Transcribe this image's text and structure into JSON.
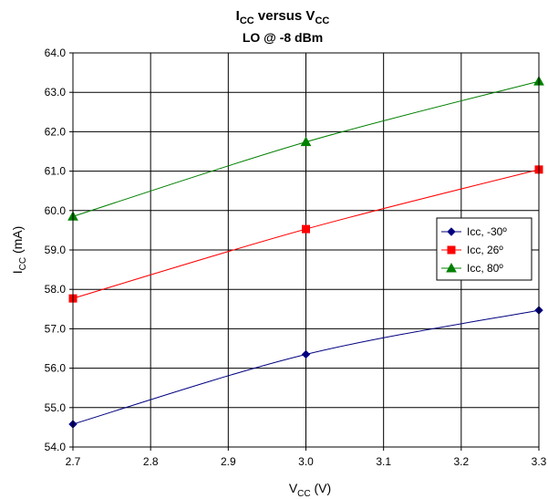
{
  "chart_data": {
    "type": "line",
    "title": {
      "main": "I",
      "main_sub": "CC",
      "mid": " versus V",
      "mid_sub": "CC"
    },
    "subtitle": "LO @ -8 dBm",
    "xlabel": {
      "main": "V",
      "sub": "CC",
      "unit": " (V)"
    },
    "ylabel": {
      "main": "I",
      "sub": "CC",
      "unit": " (mA)"
    },
    "xlim": [
      2.7,
      3.3
    ],
    "ylim": [
      54.0,
      64.0
    ],
    "x_ticks": [
      "2.7",
      "2.8",
      "2.9",
      "3.0",
      "3.1",
      "3.2",
      "3.3"
    ],
    "y_ticks": [
      "54.0",
      "55.0",
      "56.0",
      "57.0",
      "58.0",
      "59.0",
      "60.0",
      "61.0",
      "62.0",
      "63.0",
      "64.0"
    ],
    "grid": true,
    "legend_position": "right",
    "series": [
      {
        "name": "Icc, -30º",
        "color": "#000080",
        "marker": "diamond",
        "x": [
          2.7,
          3.0,
          3.3
        ],
        "values": [
          54.58,
          56.35,
          57.47
        ]
      },
      {
        "name": "Icc, 26º",
        "color": "#ff0000",
        "marker": "square",
        "x": [
          2.7,
          3.0,
          3.3
        ],
        "values": [
          57.77,
          59.53,
          61.04
        ]
      },
      {
        "name": "Icc, 80º",
        "color": "#008000",
        "marker": "triangle",
        "x": [
          2.7,
          3.0,
          3.3
        ],
        "values": [
          59.85,
          61.74,
          63.28
        ]
      }
    ]
  }
}
